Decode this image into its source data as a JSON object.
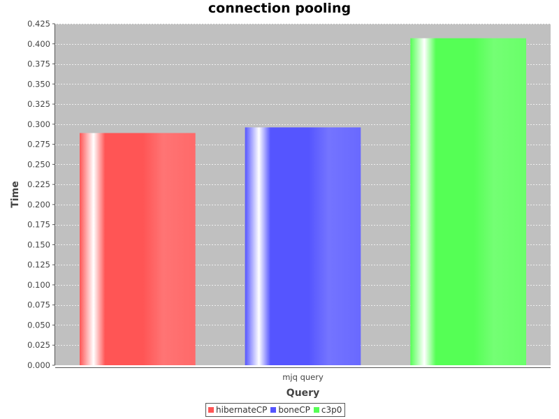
{
  "colors": {
    "plot_background": "#c0c0c0",
    "gridline": "#ffffff",
    "axis": "#555555",
    "text": "#444444"
  },
  "legend_items": [
    {
      "label": "hibernateCP",
      "color": "#ff5555"
    },
    {
      "label": "boneCP",
      "color": "#5555ff"
    },
    {
      "label": "c3p0",
      "color": "#55ff55"
    }
  ],
  "chart_data": {
    "type": "bar",
    "title": "connection pooling",
    "xlabel": "Query",
    "ylabel": "Time",
    "categories": [
      "mjq query"
    ],
    "series": [
      {
        "name": "hibernateCP",
        "values": [
          0.289
        ],
        "color": "#ff5555"
      },
      {
        "name": "boneCP",
        "values": [
          0.296
        ],
        "color": "#5555ff"
      },
      {
        "name": "c3p0",
        "values": [
          0.407
        ],
        "color": "#55ff55"
      }
    ],
    "ylim": [
      0,
      0.425
    ],
    "yticks": [
      "0.000",
      "0.025",
      "0.050",
      "0.075",
      "0.100",
      "0.125",
      "0.150",
      "0.175",
      "0.200",
      "0.225",
      "0.250",
      "0.275",
      "0.300",
      "0.325",
      "0.350",
      "0.375",
      "0.400",
      "0.425"
    ],
    "grid": true,
    "legend_position": "bottom"
  }
}
